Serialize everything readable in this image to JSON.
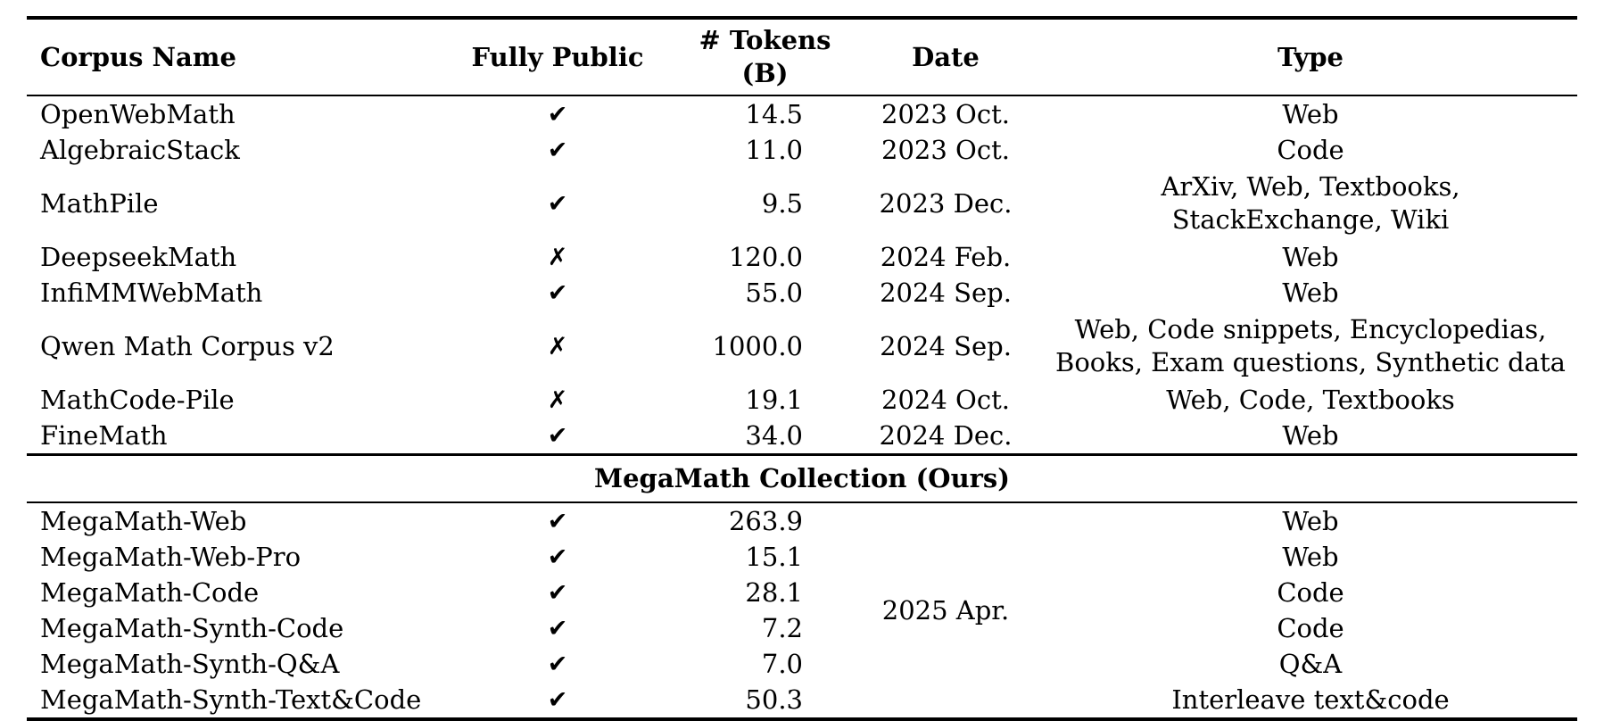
{
  "table": {
    "columns": {
      "name": "Corpus Name",
      "public": "Fully Public",
      "tokens": "# Tokens (B)",
      "date": "Date",
      "type": "Type"
    },
    "icons": {
      "check": "✔",
      "cross": "✗"
    },
    "rows": [
      {
        "name": "OpenWebMath",
        "public_mark": "✔",
        "tokens": "14.5",
        "date": "2023 Oct.",
        "type": "Web"
      },
      {
        "name": "AlgebraicStack",
        "public_mark": "✔",
        "tokens": "11.0",
        "date": "2023 Oct.",
        "type": "Code"
      },
      {
        "name": "MathPile",
        "public_mark": "✔",
        "tokens": "9.5",
        "date": "2023 Dec.",
        "type": "ArXiv, Web, Textbooks,\nStackExchange, Wiki"
      },
      {
        "name": "DeepseekMath",
        "public_mark": "✗",
        "tokens": "120.0",
        "date": "2024 Feb.",
        "type": "Web"
      },
      {
        "name": "InfiMMWebMath",
        "public_mark": "✔",
        "tokens": "55.0",
        "date": "2024 Sep.",
        "type": "Web"
      },
      {
        "name": "Qwen Math Corpus v2",
        "public_mark": "✗",
        "tokens": "1000.0",
        "date": "2024 Sep.",
        "type": "Web, Code snippets, Encyclopedias,\nBooks, Exam questions, Synthetic data"
      },
      {
        "name": "MathCode-Pile",
        "public_mark": "✗",
        "tokens": "19.1",
        "date": "2024 Oct.",
        "type": "Web, Code, Textbooks"
      },
      {
        "name": "FineMath",
        "public_mark": "✔",
        "tokens": "34.0",
        "date": "2024 Dec.",
        "type": "Web"
      }
    ],
    "section_header": "MegaMath Collection (Ours)",
    "megamath_date": "2025 Apr.",
    "megamath_rows": [
      {
        "name": "MegaMath-Web",
        "public_mark": "✔",
        "tokens": "263.9",
        "type": "Web"
      },
      {
        "name": "MegaMath-Web-Pro",
        "public_mark": "✔",
        "tokens": "15.1",
        "type": "Web"
      },
      {
        "name": "MegaMath-Code",
        "public_mark": "✔",
        "tokens": "28.1",
        "type": "Code"
      },
      {
        "name": "MegaMath-Synth-Code",
        "public_mark": "✔",
        "tokens": "7.2",
        "type": "Code"
      },
      {
        "name": "MegaMath-Synth-Q&A",
        "public_mark": "✔",
        "tokens": "7.0",
        "type": "Q&A"
      },
      {
        "name": "MegaMath-Synth-Text&Code",
        "public_mark": "✔",
        "tokens": "50.3",
        "type": "Interleave text&code"
      }
    ]
  }
}
